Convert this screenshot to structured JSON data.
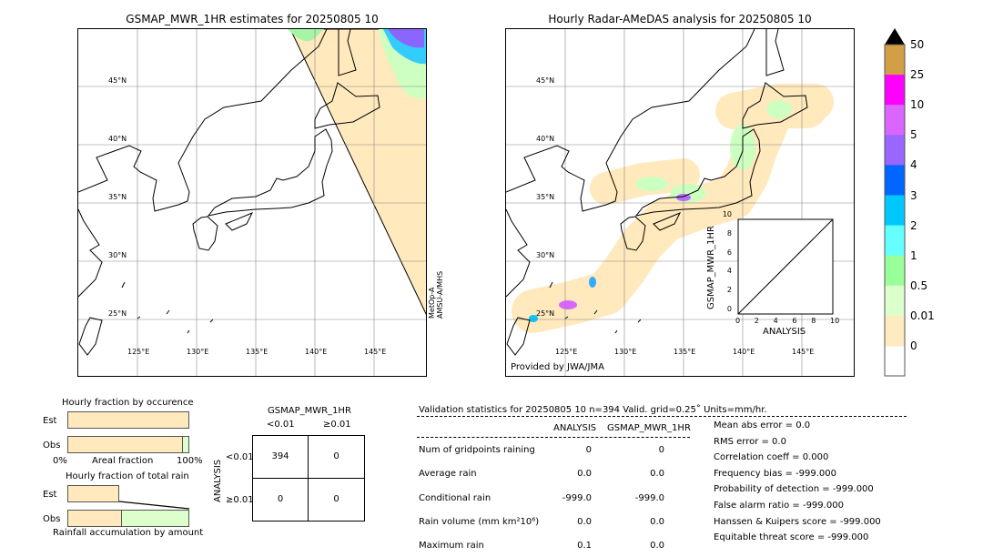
{
  "left_map": {
    "title": "GSMAP_MWR_1HR estimates for 20250805 10",
    "sensor_label_1": "MetOp-A",
    "sensor_label_2": "AMSU-A/MHS"
  },
  "right_map": {
    "title": "Hourly Radar-AMeDAS analysis for 20250805 10",
    "credit": "Provided by JWA/JMA"
  },
  "lat_ticks": [
    "45°N",
    "40°N",
    "35°N",
    "30°N",
    "25°N"
  ],
  "lon_ticks": [
    "125°E",
    "130°E",
    "135°E",
    "140°E",
    "145°E"
  ],
  "inset": {
    "ylabel": "GSMAP_MWR_1HR",
    "xlabel": "ANALYSIS",
    "ticks": [
      "0",
      "2",
      "4",
      "6",
      "8",
      "10"
    ]
  },
  "colorbar": {
    "labels": [
      "50",
      "25",
      "10",
      "5",
      "4",
      "3",
      "2",
      "1",
      "0.5",
      "0.01",
      "0"
    ],
    "colors": [
      "#d29e46",
      "#ff00ff",
      "#da65ff",
      "#9966ff",
      "#0066ff",
      "#00c8ff",
      "#66ffff",
      "#99ff99",
      "#ddffcc",
      "#ffebc0"
    ]
  },
  "chart_data": [
    {
      "type": "bar",
      "title": "Hourly fraction by occurence",
      "xlabel": "Areal fraction",
      "categories": [
        "Est",
        "Obs"
      ],
      "tick_labels": [
        "0%",
        "100%"
      ],
      "series": [
        {
          "values": [
            100,
            95
          ]
        },
        {
          "values": [
            0,
            5
          ]
        }
      ]
    },
    {
      "type": "bar",
      "title": "Hourly fraction of total rain",
      "xlabel": "Rainfall accumulation by amount",
      "categories": [
        "Est",
        "Obs"
      ],
      "series": [
        {
          "values": [
            42,
            44
          ]
        },
        {
          "values": [
            0,
            56
          ]
        }
      ]
    },
    {
      "type": "table",
      "title": "GSMAP_MWR_1HR",
      "ylabel": "ANALYSIS",
      "col_headers": [
        "<0.01",
        "≥0.01"
      ],
      "row_headers": [
        "<0.01",
        "≥0.01"
      ],
      "cells": [
        [
          "394",
          "0"
        ],
        [
          "0",
          "0"
        ]
      ]
    }
  ],
  "stats": {
    "header": "Validation statistics for 20250805 10  n=394 Valid. grid=0.25˚ Units=mm/hr.",
    "col1": "ANALYSIS",
    "col2": "GSMAP_MWR_1HR",
    "rows": [
      {
        "label": "Num of gridpoints raining",
        "a": "0",
        "g": "0"
      },
      {
        "label": "Average rain",
        "a": "0.0",
        "g": "0.0"
      },
      {
        "label": "Conditional rain",
        "a": "-999.0",
        "g": "-999.0"
      },
      {
        "label": "Rain volume (mm km²10⁶)",
        "a": "0.0",
        "g": "0.0"
      },
      {
        "label": "Maximum rain",
        "a": "0.1",
        "g": "0.0"
      }
    ],
    "scores": [
      "Mean abs error =    0.0",
      "RMS error =    0.0",
      "Correlation coeff =  0.000",
      "Frequency bias = -999.000",
      "Probability of detection = -999.000",
      "False alarm ratio = -999.000",
      "Hanssen & Kuipers score = -999.000",
      "Equitable threat score = -999.000"
    ]
  }
}
